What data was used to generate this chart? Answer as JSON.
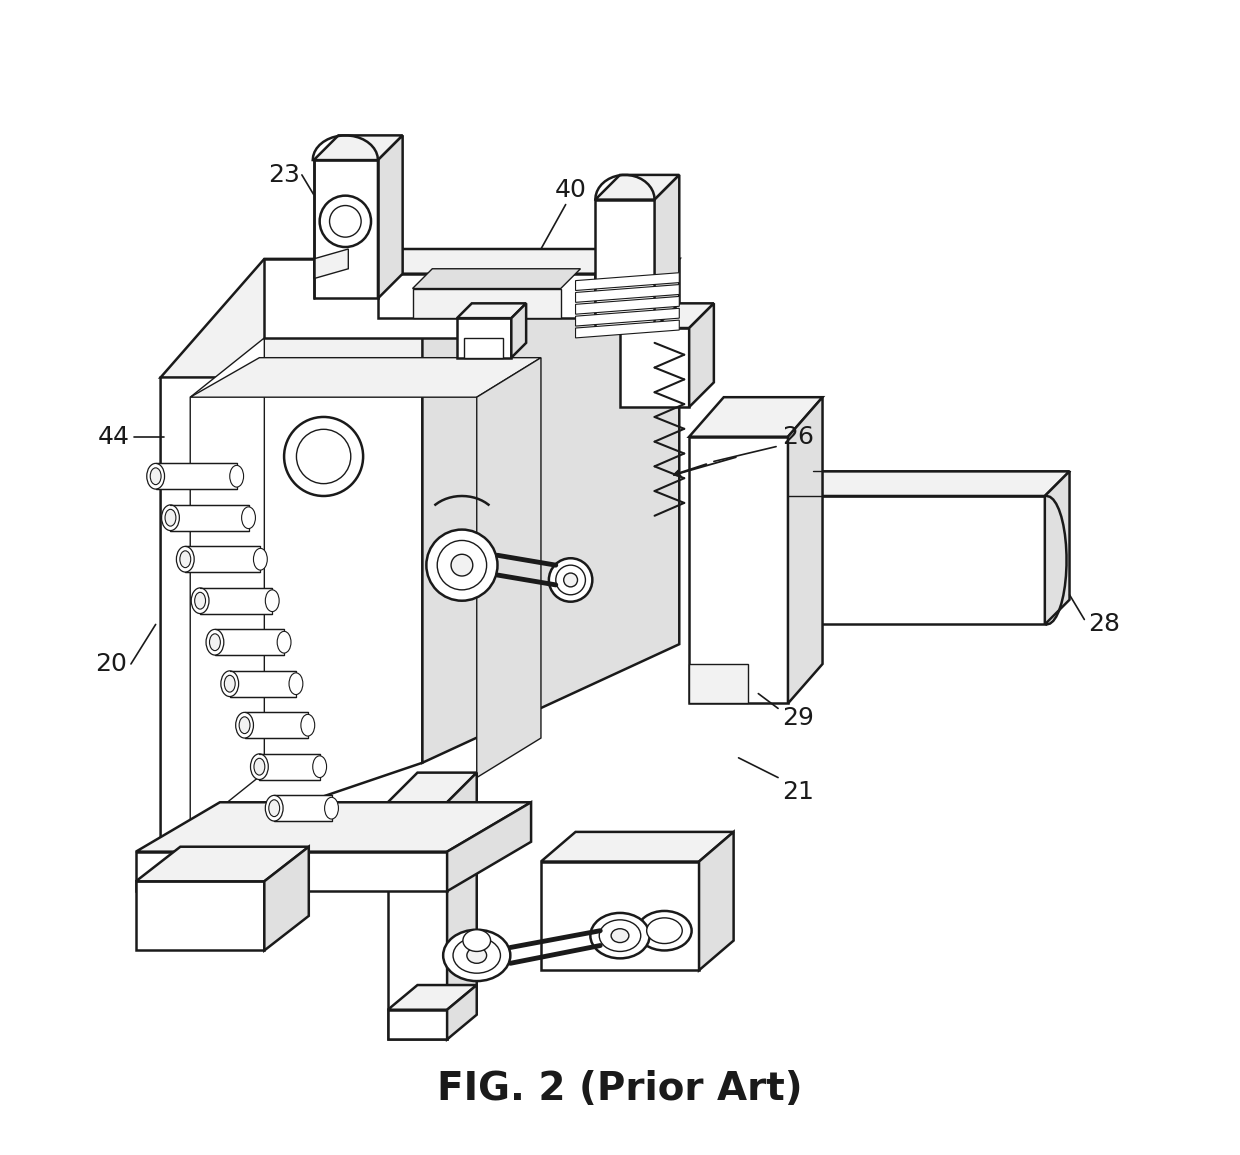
{
  "title": "FIG. 2 (Prior Art)",
  "title_fontsize": 28,
  "title_fontweight": "bold",
  "bg_color": "#ffffff",
  "line_color": "#1a1a1a",
  "label_fontsize": 18,
  "lw": 1.8,
  "lw_thin": 1.0,
  "fc_white": "#ffffff",
  "fc_light": "#f2f2f2",
  "fc_mid": "#e0e0e0",
  "fc_dark": "#cccccc"
}
